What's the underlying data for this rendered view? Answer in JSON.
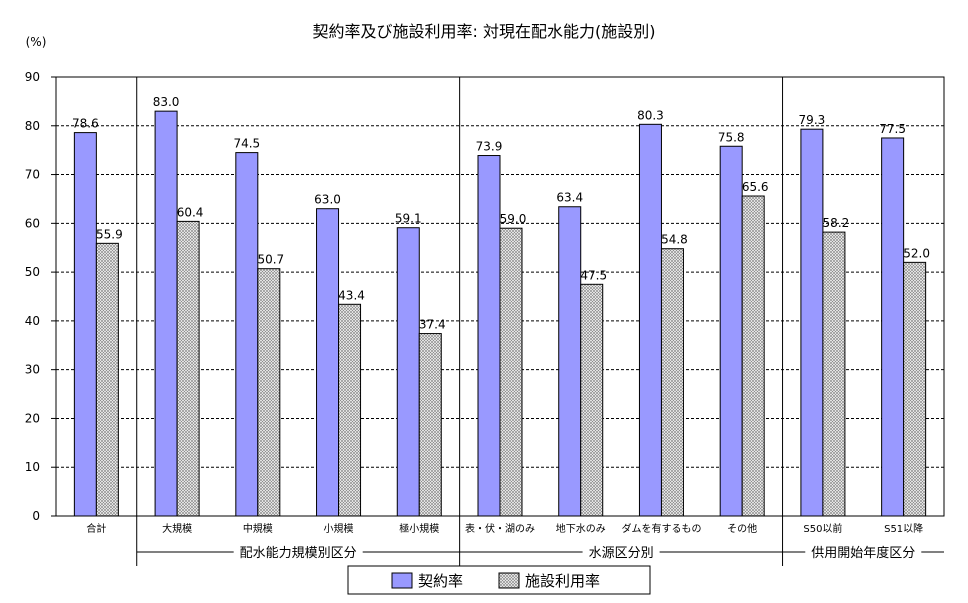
{
  "chart_data": {
    "type": "bar",
    "title": "契約率及び施設利用率: 対現在配水能力(施設別)",
    "ylabel": "(%)",
    "ylim": [
      0,
      90
    ],
    "yticks": [
      "0",
      "10",
      "20",
      "30",
      "40",
      "50",
      "60",
      "70",
      "80",
      "90"
    ],
    "grid": "dashed-horizontal",
    "categories": [
      "合計",
      "大規模",
      "中規模",
      "小規模",
      "極小規模",
      "表・伏・湖のみ",
      "地下水のみ",
      "ダムを有するもの",
      "その他",
      "S50以前",
      "S51以降"
    ],
    "value_labels": {
      "contract": [
        "78.6",
        "83.0",
        "74.5",
        "63.0",
        "59.1",
        "73.9",
        "63.4",
        "80.3",
        "75.8",
        "79.3",
        "77.5"
      ],
      "facility": [
        "55.9",
        "60.4",
        "50.7",
        "43.4",
        "37.4",
        "59.0",
        "47.5",
        "54.8",
        "65.6",
        "58.2",
        "52.0"
      ]
    },
    "series": [
      {
        "name": "契約率",
        "values": [
          78.6,
          83.0,
          74.5,
          63.0,
          59.1,
          73.9,
          63.4,
          80.3,
          75.8,
          79.3,
          77.5
        ],
        "color": "#9999ff",
        "fill": "solid"
      },
      {
        "name": "施設利用率",
        "values": [
          55.9,
          60.4,
          50.7,
          43.4,
          37.4,
          59.0,
          47.5,
          54.8,
          65.6,
          58.2,
          52.0
        ],
        "color": "#ffffff",
        "fill": "crosshatch"
      }
    ],
    "groups": [
      {
        "label": "配水能力規模別区分",
        "start": 1,
        "end": 4
      },
      {
        "label": "水源区分別",
        "start": 5,
        "end": 8
      },
      {
        "label": "供用開始年度区分",
        "start": 9,
        "end": 10
      }
    ],
    "legend": {
      "position": "bottom",
      "items": [
        "契約率",
        "施設利用率"
      ]
    }
  }
}
